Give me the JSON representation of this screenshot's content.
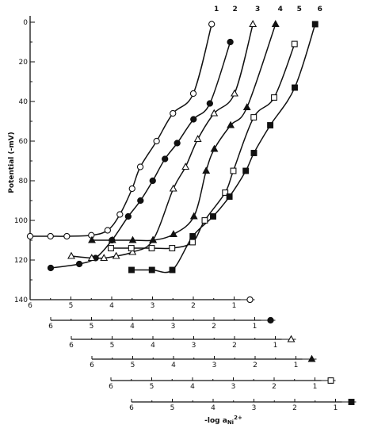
{
  "chart_data": {
    "type": "line",
    "ylabel": "Potential (-mV)",
    "xlabel": "-log a",
    "xlabel_sub": "Ni",
    "xlabel_sup": "2+",
    "y_ticks": [
      "0",
      "20",
      "40",
      "60",
      "80",
      "100",
      "120",
      "140"
    ],
    "ylim": [
      0,
      140
    ],
    "y_inverted": true,
    "grid": false,
    "x_ticks": [
      "6",
      "5",
      "4",
      "3",
      "2",
      "1"
    ],
    "series": [
      {
        "name": "1",
        "marker": "open-circle",
        "x": [
          6.0,
          5.5,
          5.1,
          4.5,
          4.1,
          3.8,
          3.5,
          3.3,
          2.9,
          2.5,
          2.0,
          1.55
        ],
        "y": [
          108,
          108,
          108,
          107.5,
          105,
          97,
          84,
          73,
          60,
          46,
          36,
          1
        ]
      },
      {
        "name": "2",
        "marker": "filled-circle",
        "x": [
          6.0,
          5.3,
          4.9,
          4.5,
          4.1,
          3.8,
          3.5,
          3.2,
          2.9,
          2.5,
          2.1,
          1.6
        ],
        "y": [
          124,
          122,
          119,
          110,
          98,
          90,
          80,
          69,
          61,
          49,
          41,
          10
        ]
      },
      {
        "name": "3",
        "marker": "open-triangle",
        "x": [
          6.0,
          5.5,
          5.2,
          4.9,
          4.5,
          4.0,
          3.5,
          3.2,
          2.9,
          2.5,
          2.0,
          1.55
        ],
        "y": [
          118,
          119,
          119,
          118,
          116,
          110,
          84,
          73,
          59,
          46,
          36,
          1
        ]
      },
      {
        "name": "4",
        "marker": "filled-triangle",
        "x": [
          6.0,
          5.5,
          5.0,
          4.5,
          4.0,
          3.5,
          3.2,
          3.0,
          2.6,
          2.2,
          1.5
        ],
        "y": [
          110,
          110,
          110,
          110,
          107,
          98,
          75,
          64,
          52,
          43,
          1
        ]
      },
      {
        "name": "5",
        "marker": "open-square",
        "x": [
          6.0,
          5.5,
          5.0,
          4.5,
          4.0,
          3.7,
          3.2,
          3.0,
          2.5,
          2.0,
          1.5
        ],
        "y": [
          114,
          114,
          114,
          114,
          111,
          100,
          86,
          75,
          48,
          38,
          11
        ]
      },
      {
        "name": "6",
        "marker": "filled-square",
        "x": [
          6.0,
          5.5,
          5.0,
          4.5,
          4.0,
          3.6,
          3.2,
          3.0,
          2.6,
          2.0,
          1.5
        ],
        "y": [
          125,
          125,
          125,
          108,
          98,
          88,
          75,
          66,
          52,
          33,
          1
        ]
      }
    ]
  }
}
